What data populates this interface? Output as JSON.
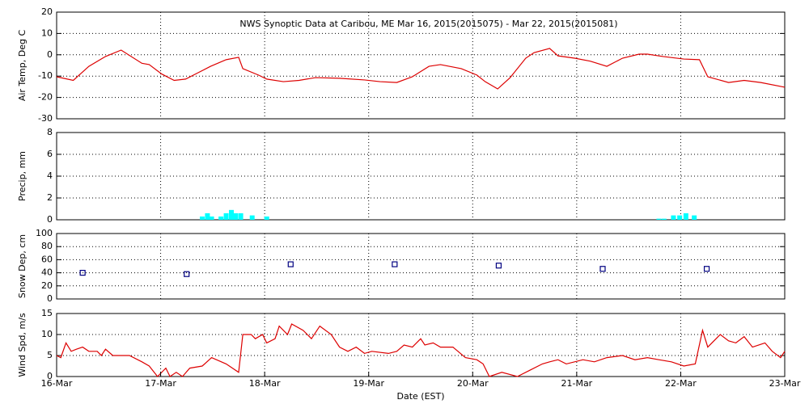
{
  "chart_data": [
    {
      "type": "line",
      "title": "NWS Synoptic Data at Caribou, ME   Mar 16, 2015(2015075) - Mar 22, 2015(2015081)",
      "ylabel": "Air Temp, Deg C",
      "ylim": [
        -30,
        20
      ],
      "yticks": [
        -30,
        -20,
        -10,
        0,
        10,
        20
      ],
      "grid": true,
      "x": [
        0,
        0.16,
        0.31,
        0.47,
        0.62,
        0.82,
        0.89,
        1.01,
        1.13,
        1.24,
        1.36,
        1.48,
        1.63,
        1.75,
        1.79,
        1.94,
        2.02,
        2.18,
        2.33,
        2.49,
        2.72,
        2.96,
        3.11,
        3.27,
        3.42,
        3.58,
        3.69,
        3.89,
        4.04,
        4.12,
        4.24,
        4.36,
        4.51,
        4.59,
        4.74,
        4.82,
        4.98,
        5.13,
        5.29,
        5.44,
        5.6,
        5.68,
        5.83,
        6.03,
        6.18,
        6.26,
        6.46,
        6.61,
        6.77,
        7
      ],
      "series": [
        {
          "name": "Air Temp",
          "color": "#dd0000",
          "values": [
            -10.3,
            -12,
            -5.4,
            -0.8,
            2.2,
            -4,
            -4.6,
            -9,
            -12,
            -11.4,
            -8.4,
            -5.4,
            -2.3,
            -1.2,
            -6.5,
            -9.5,
            -11.4,
            -12.6,
            -12,
            -10.7,
            -11,
            -11.8,
            -12.6,
            -13,
            -10.3,
            -5.4,
            -4.6,
            -6.5,
            -9.5,
            -12.6,
            -16,
            -10.7,
            -1.6,
            1,
            3,
            -0.5,
            -1.6,
            -3,
            -5.4,
            -1.6,
            0.3,
            0.3,
            -0.8,
            -2,
            -2.3,
            -10.3,
            -13,
            -12,
            -13,
            -15.2
          ]
        }
      ]
    },
    {
      "type": "bar",
      "ylabel": "Precip, mm",
      "ylim": [
        0,
        8
      ],
      "yticks": [
        0,
        2,
        4,
        6,
        8
      ],
      "grid": true,
      "x": [
        1.4,
        1.45,
        1.49,
        1.58,
        1.63,
        1.68,
        1.72,
        1.77,
        1.88,
        2.02,
        5.79,
        5.84,
        5.93,
        5.99,
        6.05,
        6.13
      ],
      "series": [
        {
          "name": "Precip",
          "color": "#00ffff",
          "values": [
            0.3,
            0.6,
            0.3,
            0.3,
            0.6,
            0.9,
            0.6,
            0.6,
            0.4,
            0.3,
            0.1,
            0.1,
            0.4,
            0.4,
            0.6,
            0.4
          ]
        }
      ]
    },
    {
      "type": "scatter",
      "ylabel": "Snow Dep, cm",
      "ylim": [
        0,
        100
      ],
      "yticks": [
        0,
        20,
        40,
        60,
        80,
        100
      ],
      "grid": true,
      "x": [
        0.25,
        1.25,
        2.25,
        3.25,
        4.25,
        5.25,
        6.25
      ],
      "series": [
        {
          "name": "Snow Depth",
          "color": "#000080",
          "values": [
            40,
            38,
            53,
            53,
            51,
            46,
            46
          ]
        }
      ]
    },
    {
      "type": "line",
      "ylabel": "Wind Spd, m/s",
      "xlabel": "Date (EST)",
      "ylim": [
        0,
        15
      ],
      "yticks": [
        0,
        5,
        10,
        15
      ],
      "grid": true,
      "xlim": [
        0,
        7
      ],
      "xticks": [
        {
          "value": 0,
          "label": "16-Mar"
        },
        {
          "value": 1,
          "label": "17-Mar"
        },
        {
          "value": 2,
          "label": "18-Mar"
        },
        {
          "value": 3,
          "label": "19-Mar"
        },
        {
          "value": 4,
          "label": "20-Mar"
        },
        {
          "value": 5,
          "label": "21-Mar"
        },
        {
          "value": 6,
          "label": "22-Mar"
        },
        {
          "value": 7,
          "label": "23-Mar"
        }
      ],
      "x": [
        0,
        0.04,
        0.09,
        0.14,
        0.19,
        0.25,
        0.31,
        0.39,
        0.43,
        0.47,
        0.54,
        0.62,
        0.7,
        0.82,
        0.89,
        0.97,
        1.05,
        1.09,
        1.15,
        1.21,
        1.28,
        1.4,
        1.49,
        1.63,
        1.75,
        1.79,
        1.87,
        1.91,
        1.98,
        2.02,
        2.1,
        2.14,
        2.22,
        2.26,
        2.37,
        2.45,
        2.53,
        2.64,
        2.72,
        2.8,
        2.88,
        2.96,
        3.03,
        3.19,
        3.27,
        3.34,
        3.42,
        3.5,
        3.54,
        3.62,
        3.69,
        3.81,
        3.93,
        4.04,
        4.1,
        4.16,
        4.28,
        4.43,
        4.55,
        4.67,
        4.74,
        4.82,
        4.9,
        5.06,
        5.17,
        5.29,
        5.44,
        5.56,
        5.68,
        5.79,
        5.91,
        6.03,
        6.14,
        6.21,
        6.26,
        6.38,
        6.46,
        6.53,
        6.61,
        6.69,
        6.81,
        6.88,
        6.96,
        7
      ],
      "series": [
        {
          "name": "Wind Speed",
          "color": "#dd0000",
          "values": [
            5,
            4.5,
            8,
            6,
            6.5,
            7,
            6,
            6,
            5,
            6.5,
            5,
            5,
            5,
            3.5,
            2.5,
            0,
            2,
            0,
            1,
            0,
            2,
            2.5,
            4.5,
            3,
            1,
            10,
            10,
            9,
            10,
            8,
            9,
            12,
            10,
            12.5,
            11,
            9,
            12,
            10,
            7,
            6,
            7,
            5.5,
            6,
            5.5,
            6,
            7.5,
            7,
            9,
            7.5,
            8,
            7,
            7,
            4.5,
            4,
            3,
            0,
            1,
            0,
            1.5,
            3,
            3.5,
            4,
            3,
            4,
            3.5,
            4.5,
            5,
            4,
            4.5,
            4,
            3.5,
            2.5,
            3,
            11,
            7,
            10,
            8.5,
            8,
            9.5,
            7,
            8,
            6,
            4.5,
            6
          ]
        }
      ]
    }
  ]
}
